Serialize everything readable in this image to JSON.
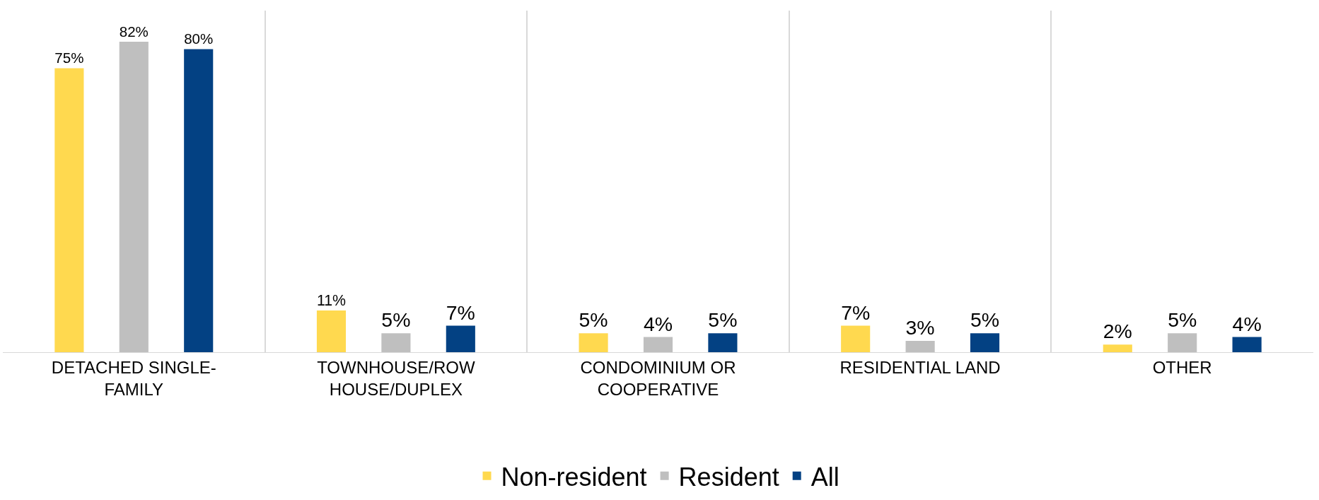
{
  "chart_data": {
    "type": "bar",
    "categories": [
      "DETACHED SINGLE-FAMILY",
      "TOWNHOUSE/ROW HOUSE/DUPLEX",
      "CONDOMINIUM OR COOPERATIVE",
      "RESIDENTIAL LAND",
      "OTHER"
    ],
    "series": [
      {
        "name": "Non-resident",
        "color": "#ffd94f",
        "values": [
          75,
          11,
          5,
          7,
          2
        ],
        "value_labels": [
          "75%",
          "11%",
          "5%",
          "7%",
          "2%"
        ]
      },
      {
        "name": "Resident",
        "color": "#bfbfbf",
        "values": [
          82,
          5,
          4,
          3,
          5
        ],
        "value_labels": [
          "82%",
          "5%",
          "4%",
          "3%",
          "5%"
        ]
      },
      {
        "name": "All",
        "color": "#034183",
        "values": [
          80,
          7,
          5,
          5,
          4
        ],
        "value_labels": [
          "80%",
          "7%",
          "5%",
          "5%",
          "4%"
        ]
      }
    ],
    "grid": "x",
    "legend": "bottom"
  }
}
